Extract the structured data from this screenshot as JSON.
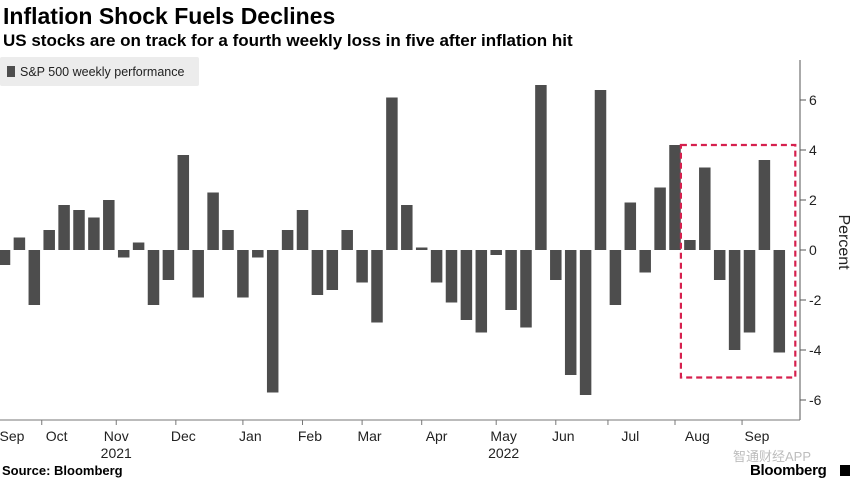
{
  "header": {
    "title": "Inflation Shock Fuels Declines",
    "subtitle": "US stocks are on track for a fourth weekly loss in five after inflation hit"
  },
  "footer": {
    "source": "Source: Bloomberg",
    "logo": "Bloomberg",
    "watermark": "智通财经APP"
  },
  "chart_data": {
    "type": "bar",
    "title": "Inflation Shock Fuels Declines",
    "subtitle": "US stocks are on track for a fourth weekly loss in five after inflation hit",
    "legend": "S&P 500 weekly performance",
    "legend_position": "top-left",
    "ylabel": "Percent",
    "ylim": [
      -7,
      8
    ],
    "yticks": [
      -6,
      -4,
      -2,
      0,
      2,
      4,
      6
    ],
    "grid": false,
    "color": "#4d4d4d",
    "highlight_color": "#d6204e",
    "highlight": {
      "start_index": 46,
      "end_index": 52,
      "ymin": -5.1,
      "ymax": 4.2
    },
    "month_ticks": [
      {
        "label": "Sep",
        "index": 0.5
      },
      {
        "label": "Oct",
        "index": 3.5
      },
      {
        "label": "Nov",
        "index": 7.5
      },
      {
        "label": "Dec",
        "index": 12
      },
      {
        "label": "Jan",
        "index": 16.5
      },
      {
        "label": "Feb",
        "index": 20.5
      },
      {
        "label": "Mar",
        "index": 24.5
      },
      {
        "label": "Apr",
        "index": 29
      },
      {
        "label": "May",
        "index": 33.5
      },
      {
        "label": "Jun",
        "index": 37.5
      },
      {
        "label": "Jul",
        "index": 42
      },
      {
        "label": "Aug",
        "index": 46.5
      },
      {
        "label": "Sep",
        "index": 50.5
      }
    ],
    "year_labels": [
      {
        "label": "2021",
        "index": 7.5
      },
      {
        "label": "2022",
        "index": 33.5
      }
    ],
    "values": [
      -0.6,
      0.5,
      -2.2,
      0.8,
      1.8,
      1.6,
      1.3,
      2.0,
      -0.3,
      0.3,
      -2.2,
      -1.2,
      3.8,
      -1.9,
      2.3,
      0.8,
      -1.9,
      -0.3,
      -5.7,
      0.8,
      1.6,
      -1.8,
      -1.6,
      0.8,
      -1.3,
      -2.9,
      6.1,
      1.8,
      0.1,
      -1.3,
      -2.1,
      -2.8,
      -3.3,
      -0.2,
      -2.4,
      -3.1,
      6.6,
      -1.2,
      -5.0,
      -5.8,
      6.4,
      -2.2,
      1.9,
      -0.9,
      2.5,
      4.2,
      0.4,
      3.3,
      -1.2,
      -4.0,
      -3.3,
      3.6,
      -4.1
    ]
  }
}
